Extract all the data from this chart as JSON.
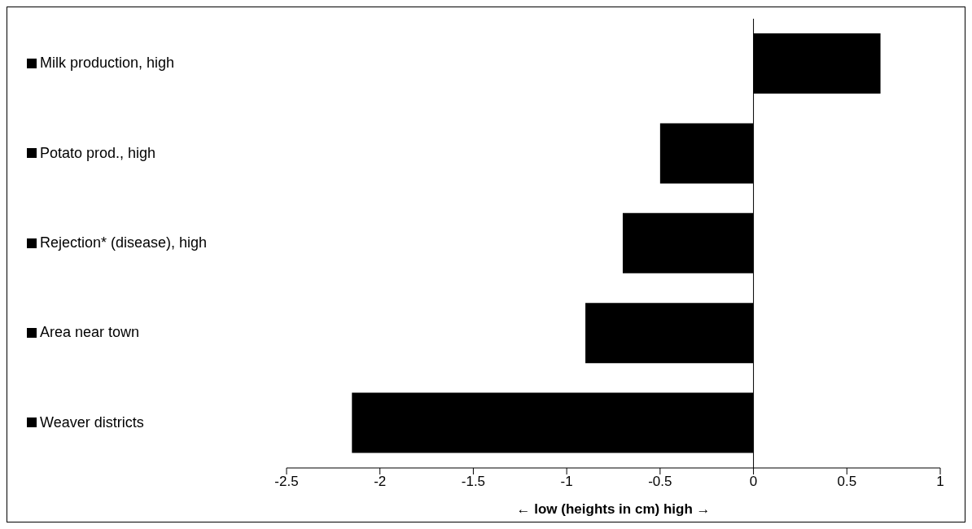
{
  "chart_data": {
    "type": "bar",
    "orientation": "horizontal",
    "xlabel": "← low (heights in cm) high →",
    "categories": [
      null,
      null,
      null,
      null,
      null
    ],
    "series": [
      {
        "name": "Milk production, high",
        "color": "#000000",
        "values": [
          0.68,
          null,
          null,
          null,
          null
        ]
      },
      {
        "name": "Potato prod., high",
        "color": "#000000",
        "values": [
          null,
          -0.5,
          null,
          null,
          null
        ]
      },
      {
        "name": "Rejection* (disease), high",
        "color": "#000000",
        "values": [
          null,
          null,
          -0.7,
          null,
          null
        ]
      },
      {
        "name": "Area near town",
        "color": "#000000",
        "values": [
          null,
          null,
          null,
          -0.9,
          null
        ]
      },
      {
        "name": "Weaver districts",
        "color": "#000000",
        "values": [
          null,
          null,
          null,
          null,
          -2.15
        ]
      }
    ],
    "xlim": [
      -2.5,
      1
    ],
    "xticks": [
      -2.5,
      -2,
      -1.5,
      -1,
      -0.5,
      0,
      0.5,
      1
    ],
    "ref_lines": [
      {
        "axis": "x",
        "value": 0,
        "color": "#000000"
      }
    ],
    "legend": "left",
    "tick_labels": "x"
  }
}
